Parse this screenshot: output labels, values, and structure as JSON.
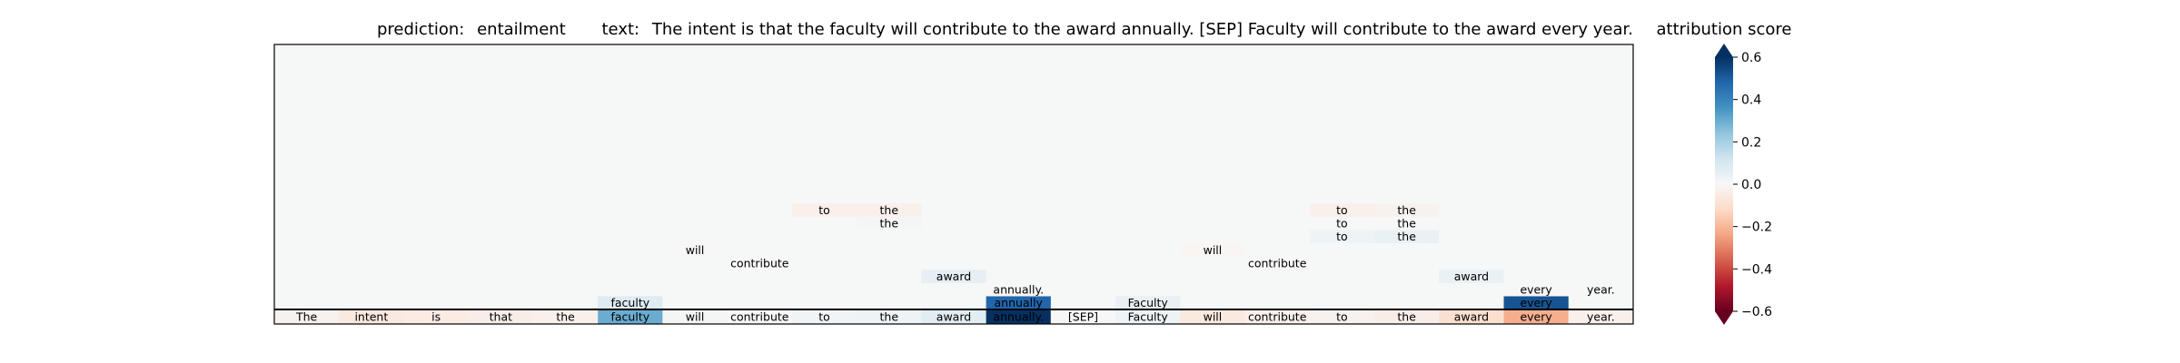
{
  "chart_data": {
    "type": "heatmap",
    "title": {
      "prediction_label": "prediction:",
      "prediction": "entailment",
      "text_label": "text:",
      "text": "The intent is that the faculty will contribute to the award annually. [SEP] Faculty will contribute to the award every year."
    },
    "colorbar": {
      "label": "attribution score",
      "vmin": -0.6,
      "vmax": 0.6,
      "ticks": [
        "0.6",
        "0.4",
        "0.2",
        "0.0",
        "−0.2",
        "−0.4",
        "−0.6"
      ],
      "tick_values": [
        0.6,
        0.4,
        0.2,
        0.0,
        -0.2,
        -0.4,
        -0.6
      ],
      "colors": [
        "#67001f",
        "#b2182b",
        "#d6604d",
        "#f4a582",
        "#fddbc7",
        "#f7f7f7",
        "#d1e5f0",
        "#92c5de",
        "#4393c3",
        "#2166ac",
        "#053061"
      ]
    },
    "tokens": [
      {
        "text": "The",
        "score": -0.02
      },
      {
        "text": "intent",
        "score": -0.06
      },
      {
        "text": "is",
        "score": -0.05
      },
      {
        "text": "that",
        "score": -0.04
      },
      {
        "text": "the",
        "score": -0.03
      },
      {
        "text": "faculty",
        "score": 0.3
      },
      {
        "text": "will",
        "score": 0.01
      },
      {
        "text": "contribute",
        "score": 0.0
      },
      {
        "text": "to",
        "score": 0.02
      },
      {
        "text": "the",
        "score": 0.03
      },
      {
        "text": "award",
        "score": 0.07
      },
      {
        "text": "annually.",
        "score": 0.6
      },
      {
        "text": "[SEP]",
        "score": 0.0
      },
      {
        "text": "Faculty",
        "score": 0.03
      },
      {
        "text": "will",
        "score": -0.06
      },
      {
        "text": "contribute",
        "score": -0.03
      },
      {
        "text": "to",
        "score": -0.02
      },
      {
        "text": "the",
        "score": -0.04
      },
      {
        "text": "award",
        "score": -0.1
      },
      {
        "text": "every",
        "score": -0.22
      },
      {
        "text": "year.",
        "score": -0.03
      }
    ],
    "tree_nodes": [
      {
        "row": 1,
        "col": 5,
        "text": "faculty",
        "score": 0.08
      },
      {
        "row": 1,
        "col": 11,
        "text": "annually",
        "score": 0.48
      },
      {
        "row": 1,
        "col": 13,
        "text": "Faculty",
        "score": 0.04
      },
      {
        "row": 1,
        "col": 19,
        "text": "every",
        "score": 0.52
      },
      {
        "row": 2,
        "col": 11,
        "text": "annually.",
        "score": 0.0
      },
      {
        "row": 2,
        "col": 19,
        "text": "every",
        "score": 0.0
      },
      {
        "row": 2,
        "col": 20,
        "text": "year.",
        "score": 0.0
      },
      {
        "row": 3,
        "col": 10,
        "text": "award",
        "score": 0.05
      },
      {
        "row": 3,
        "col": 18,
        "text": "award",
        "score": 0.04
      },
      {
        "row": 4,
        "col": 7,
        "text": "contribute",
        "score": 0.0
      },
      {
        "row": 4,
        "col": 15,
        "text": "contribute",
        "score": 0.0
      },
      {
        "row": 5,
        "col": 6,
        "text": "will",
        "score": 0.0
      },
      {
        "row": 5,
        "col": 14,
        "text": "will",
        "score": -0.01
      },
      {
        "row": 6,
        "col": 16,
        "text": "to",
        "score": 0.03
      },
      {
        "row": 6,
        "col": 17,
        "text": "the",
        "score": 0.04
      },
      {
        "row": 7,
        "col": 9,
        "text": "the",
        "score": 0.01
      },
      {
        "row": 7,
        "col": 16,
        "text": "to",
        "score": 0.0
      },
      {
        "row": 7,
        "col": 17,
        "text": "the",
        "score": 0.0
      },
      {
        "row": 8,
        "col": 8,
        "text": "to",
        "score": -0.03
      },
      {
        "row": 8,
        "col": 9,
        "text": "the",
        "score": -0.03
      },
      {
        "row": 8,
        "col": 16,
        "text": "to",
        "score": -0.03
      },
      {
        "row": 8,
        "col": 17,
        "text": "the",
        "score": -0.02
      }
    ]
  }
}
